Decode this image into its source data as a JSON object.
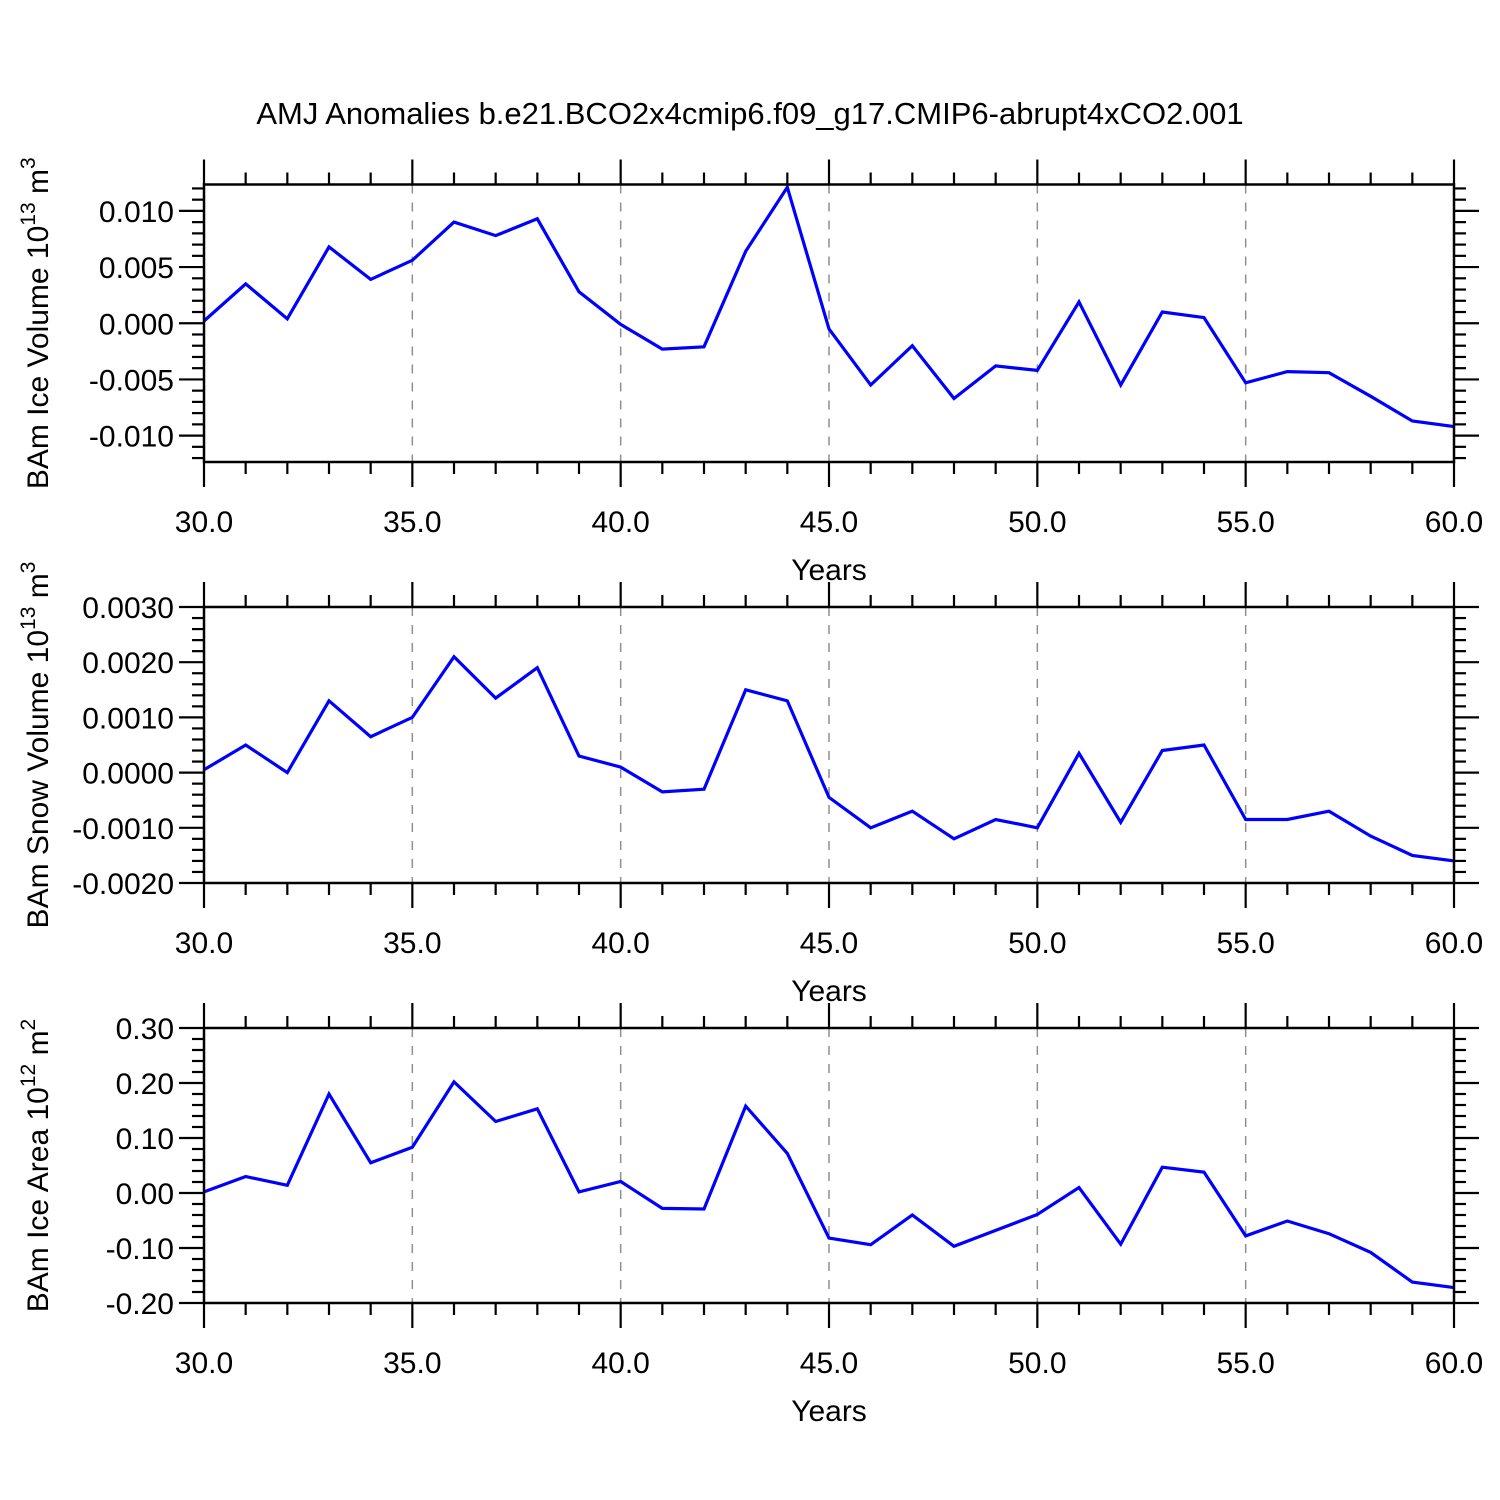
{
  "title": "AMJ Anomalies b.e21.BCO2x4cmip6.f09_g17.CMIP6-abrupt4xCO2.001",
  "style": {
    "line_color": "#0000ff",
    "axis_color": "#000000",
    "grid_color": "#8f8f8f",
    "text_color": "#000000",
    "background": "#ffffff"
  },
  "chart_data": [
    {
      "type": "line",
      "name": "bam-ice-volume",
      "ylabel": "BAm Ice Volume 10^13 m^3",
      "ylabel_parts": [
        [
          "BAm Ice Volume 10",
          0
        ],
        [
          "13",
          1
        ],
        [
          " m",
          0
        ],
        [
          "3",
          1
        ]
      ],
      "xlabel": "Years",
      "x": [
        30,
        31,
        32,
        33,
        34,
        35,
        36,
        37,
        38,
        39,
        40,
        41,
        42,
        43,
        44,
        45,
        46,
        47,
        48,
        49,
        50,
        51,
        52,
        53,
        54,
        55,
        56,
        57,
        58,
        59,
        60
      ],
      "values": [
        0.0002,
        0.0035,
        0.0004,
        0.0068,
        0.0039,
        0.0056,
        0.009,
        0.0078,
        0.0093,
        0.0028,
        -0.0001,
        -0.0023,
        -0.0021,
        0.0064,
        0.0121,
        -0.0005,
        -0.0055,
        -0.002,
        -0.0067,
        -0.0038,
        -0.0042,
        0.0019,
        -0.0055,
        0.001,
        0.0005,
        -0.0053,
        -0.0043,
        -0.0044,
        -0.0065,
        -0.0087,
        -0.0092
      ],
      "xlim": [
        30,
        60
      ],
      "ylim": [
        -0.01235,
        0.01235
      ],
      "yticks": [
        0.01,
        0.005,
        0.0,
        -0.005,
        -0.01
      ],
      "ytick_labels": [
        "0.010",
        "0.005",
        "0.000",
        "-0.005",
        "-0.010"
      ],
      "yminor_step": 0.001,
      "xticks": [
        30,
        35,
        40,
        45,
        50,
        55,
        60
      ],
      "xtick_labels": [
        "30.0",
        "35.0",
        "40.0",
        "45.0",
        "50.0",
        "55.0",
        "60.0"
      ],
      "xminor_step": 1,
      "grid_x": [
        35,
        40,
        45,
        50,
        55
      ]
    },
    {
      "type": "line",
      "name": "bam-snow-volume",
      "ylabel": "BAm Snow Volume 10^13 m^3",
      "ylabel_parts": [
        [
          "BAm Snow Volume 10",
          0
        ],
        [
          "13",
          1
        ],
        [
          " m",
          0
        ],
        [
          "3",
          1
        ]
      ],
      "xlabel": "Years",
      "x": [
        30,
        31,
        32,
        33,
        34,
        35,
        36,
        37,
        38,
        39,
        40,
        41,
        42,
        43,
        44,
        45,
        46,
        47,
        48,
        49,
        50,
        51,
        52,
        53,
        54,
        55,
        56,
        57,
        58,
        59,
        60
      ],
      "values": [
        5e-05,
        0.0005,
        0.0,
        0.0013,
        0.00065,
        0.001,
        0.0021,
        0.00135,
        0.0019,
        0.0003,
        0.0001,
        -0.00035,
        -0.0003,
        0.0015,
        0.0013,
        -0.00045,
        -0.001,
        -0.0007,
        -0.0012,
        -0.00085,
        -0.001,
        0.00035,
        -0.0009,
        0.0004,
        0.0005,
        -0.00085,
        -0.00085,
        -0.0007,
        -0.00115,
        -0.0015,
        -0.0016
      ],
      "xlim": [
        30,
        60
      ],
      "ylim": [
        -0.002,
        0.003
      ],
      "yticks": [
        0.003,
        0.002,
        0.001,
        0.0,
        -0.001,
        -0.002
      ],
      "ytick_labels": [
        "0.0030",
        "0.0020",
        "0.0010",
        "0.0000",
        "-0.0010",
        "-0.0020"
      ],
      "yminor_step": 0.0002,
      "xticks": [
        30,
        35,
        40,
        45,
        50,
        55,
        60
      ],
      "xtick_labels": [
        "30.0",
        "35.0",
        "40.0",
        "45.0",
        "50.0",
        "55.0",
        "60.0"
      ],
      "xminor_step": 1,
      "grid_x": [
        35,
        40,
        45,
        50,
        55
      ]
    },
    {
      "type": "line",
      "name": "bam-ice-area",
      "ylabel": "BAm Ice Area 10^12 m^2",
      "ylabel_parts": [
        [
          "BAm Ice Area 10",
          0
        ],
        [
          "12",
          1
        ],
        [
          " m",
          0
        ],
        [
          "2",
          1
        ]
      ],
      "xlabel": "Years",
      "x": [
        30,
        31,
        32,
        33,
        34,
        35,
        36,
        37,
        38,
        39,
        40,
        41,
        42,
        43,
        44,
        45,
        46,
        47,
        48,
        49,
        50,
        51,
        52,
        53,
        54,
        55,
        56,
        57,
        58,
        59,
        60
      ],
      "values": [
        0.002,
        0.03,
        0.014,
        0.18,
        0.055,
        0.083,
        0.202,
        0.13,
        0.153,
        0.002,
        0.021,
        -0.028,
        -0.029,
        0.158,
        0.072,
        -0.082,
        -0.094,
        -0.04,
        -0.097,
        -0.068,
        -0.039,
        0.01,
        -0.093,
        0.047,
        0.038,
        -0.078,
        -0.051,
        -0.074,
        -0.108,
        -0.162,
        -0.172
      ],
      "xlim": [
        30,
        60
      ],
      "ylim": [
        -0.2,
        0.3
      ],
      "yticks": [
        0.3,
        0.2,
        0.1,
        0.0,
        -0.1,
        -0.2
      ],
      "ytick_labels": [
        "0.30",
        "0.20",
        "0.10",
        "0.00",
        "-0.10",
        "-0.20"
      ],
      "yminor_step": 0.02,
      "xticks": [
        30,
        35,
        40,
        45,
        50,
        55,
        60
      ],
      "xtick_labels": [
        "30.0",
        "35.0",
        "40.0",
        "45.0",
        "50.0",
        "55.0",
        "60.0"
      ],
      "xminor_step": 1,
      "grid_x": [
        35,
        40,
        45,
        50,
        55
      ]
    }
  ]
}
